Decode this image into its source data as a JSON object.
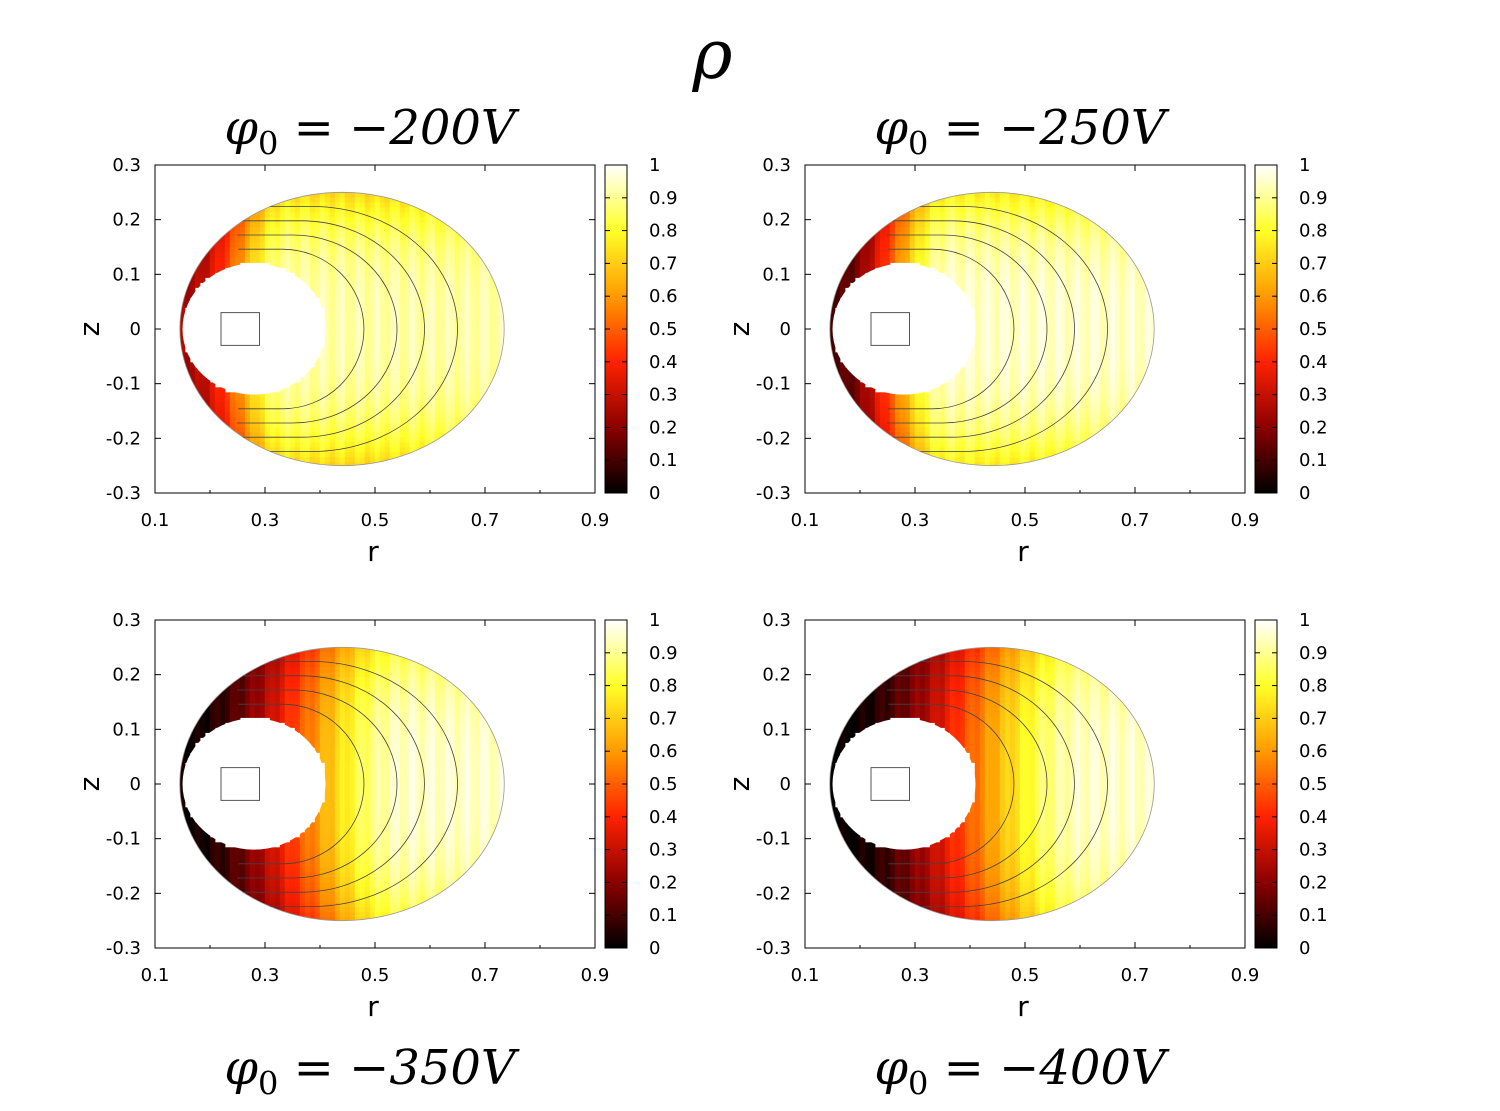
{
  "figure": {
    "title": "ρ",
    "colormap_stops": [
      "#000000",
      "#8b0000",
      "#ff2200",
      "#ff9a00",
      "#ffff28",
      "#ffffff"
    ]
  },
  "chart_data": [
    {
      "type": "heatmap",
      "title": "φ0 = −200V",
      "title_main": "φ",
      "title_sub": "0",
      "title_rest": " = −200V",
      "xlabel": "r",
      "ylabel": "z",
      "xlim": [
        0.1,
        0.9
      ],
      "ylim": [
        -0.3,
        0.3
      ],
      "xticks": [
        "0.1",
        "0.3",
        "0.5",
        "0.7",
        "0.9"
      ],
      "yticks": [
        "0.3",
        "0.2",
        "0.1",
        "0",
        "-0.1",
        "-0.2",
        "-0.3"
      ],
      "colorbar_range": [
        0,
        1
      ],
      "colorbar_ticks": [
        "1",
        "0.9",
        "0.8",
        "0.7",
        "0.6",
        "0.5",
        "0.4",
        "0.3",
        "0.2",
        "0.1",
        "0"
      ],
      "domain": {
        "outer_center": [
          0.44,
          0
        ],
        "outer_left": 0.145,
        "outer_right": 0.735,
        "outer_semi_z": 0.25,
        "inner_center": [
          0.28,
          0
        ],
        "inner_semi_r": 0.13,
        "inner_semi_z": 0.12
      },
      "contour_right_r": [
        0.48,
        0.54,
        0.59,
        0.65
      ],
      "density_profile": {
        "r_min": 0.16,
        "r_max": 0.34,
        "low": 0.25,
        "high": 0.92,
        "edge_falloff": 0.55
      },
      "marker_square": {
        "r": [
          0.22,
          0.29
        ],
        "z": [
          -0.03,
          0.03
        ]
      }
    },
    {
      "type": "heatmap",
      "title": "φ0 = −250V",
      "title_main": "φ",
      "title_sub": "0",
      "title_rest": " = −250V",
      "xlabel": "r",
      "ylabel": "z",
      "xlim": [
        0.1,
        0.9
      ],
      "ylim": [
        -0.3,
        0.3
      ],
      "xticks": [
        "0.1",
        "0.3",
        "0.5",
        "0.7",
        "0.9"
      ],
      "yticks": [
        "0.3",
        "0.2",
        "0.1",
        "0",
        "-0.1",
        "-0.2",
        "-0.3"
      ],
      "colorbar_range": [
        0,
        1
      ],
      "colorbar_ticks": [
        "1",
        "0.9",
        "0.8",
        "0.7",
        "0.6",
        "0.5",
        "0.4",
        "0.3",
        "0.2",
        "0.1",
        "0"
      ],
      "domain": {
        "outer_center": [
          0.44,
          0
        ],
        "outer_left": 0.145,
        "outer_right": 0.735,
        "outer_semi_z": 0.25,
        "inner_center": [
          0.28,
          0
        ],
        "inner_semi_r": 0.13,
        "inner_semi_z": 0.12
      },
      "contour_right_r": [
        0.48,
        0.54,
        0.59,
        0.65
      ],
      "density_profile": {
        "r_min": 0.16,
        "r_max": 0.36,
        "low": 0.12,
        "high": 0.95,
        "edge_falloff": 0.5
      },
      "marker_square": {
        "r": [
          0.22,
          0.29
        ],
        "z": [
          -0.03,
          0.03
        ]
      }
    },
    {
      "type": "heatmap",
      "title": "φ0 = −350V",
      "title_main": "φ",
      "title_sub": "0",
      "title_rest": " = −350V",
      "xlabel": "r",
      "ylabel": "z",
      "xlim": [
        0.1,
        0.9
      ],
      "ylim": [
        -0.3,
        0.3
      ],
      "xticks": [
        "0.1",
        "0.3",
        "0.5",
        "0.7",
        "0.9"
      ],
      "yticks": [
        "0.3",
        "0.2",
        "0.1",
        "0",
        "-0.1",
        "-0.2",
        "-0.3"
      ],
      "colorbar_range": [
        0,
        1
      ],
      "colorbar_ticks": [
        "1",
        "0.9",
        "0.8",
        "0.7",
        "0.6",
        "0.5",
        "0.4",
        "0.3",
        "0.2",
        "0.1",
        "0"
      ],
      "domain": {
        "outer_center": [
          0.44,
          0
        ],
        "outer_left": 0.145,
        "outer_right": 0.735,
        "outer_semi_z": 0.25,
        "inner_center": [
          0.28,
          0
        ],
        "inner_semi_r": 0.13,
        "inner_semi_z": 0.12
      },
      "contour_right_r": [
        0.48,
        0.54,
        0.59,
        0.65
      ],
      "density_profile": {
        "r_min": 0.16,
        "r_max": 0.56,
        "low": 0.02,
        "high": 0.95,
        "edge_falloff": 0.35
      },
      "marker_square": {
        "r": [
          0.22,
          0.29
        ],
        "z": [
          -0.03,
          0.03
        ]
      }
    },
    {
      "type": "heatmap",
      "title": "φ0 = −400V",
      "title_main": "φ",
      "title_sub": "0",
      "title_rest": " = −400V",
      "xlabel": "r",
      "ylabel": "z",
      "xlim": [
        0.1,
        0.9
      ],
      "ylim": [
        -0.3,
        0.3
      ],
      "xticks": [
        "0.1",
        "0.3",
        "0.5",
        "0.7",
        "0.9"
      ],
      "yticks": [
        "0.3",
        "0.2",
        "0.1",
        "0",
        "-0.1",
        "-0.2",
        "-0.3"
      ],
      "colorbar_range": [
        0,
        1
      ],
      "colorbar_ticks": [
        "1",
        "0.9",
        "0.8",
        "0.7",
        "0.6",
        "0.5",
        "0.4",
        "0.3",
        "0.2",
        "0.1",
        "0"
      ],
      "domain": {
        "outer_center": [
          0.44,
          0
        ],
        "outer_left": 0.145,
        "outer_right": 0.735,
        "outer_semi_z": 0.25,
        "inner_center": [
          0.28,
          0
        ],
        "inner_semi_r": 0.13,
        "inner_semi_z": 0.12
      },
      "contour_right_r": [
        0.48,
        0.54,
        0.59,
        0.65
      ],
      "density_profile": {
        "r_min": 0.16,
        "r_max": 0.62,
        "low": 0.0,
        "high": 0.95,
        "edge_falloff": 0.3
      },
      "marker_square": {
        "r": [
          0.22,
          0.29
        ],
        "z": [
          -0.03,
          0.03
        ]
      }
    }
  ]
}
